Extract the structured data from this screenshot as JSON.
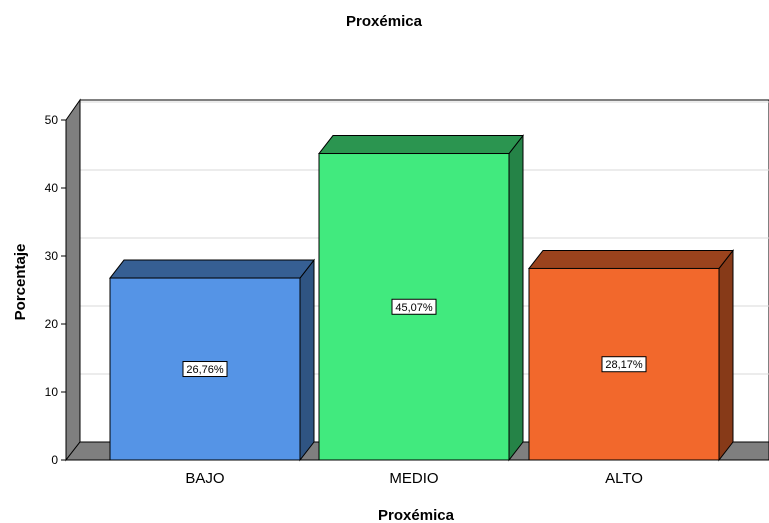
{
  "chart_data": {
    "type": "bar",
    "title": "Proxémica",
    "xlabel": "Proxémica",
    "ylabel": "Porcentaje",
    "categories": [
      "BAJO",
      "MEDIO",
      "ALTO"
    ],
    "values": [
      26.76,
      45.07,
      28.17
    ],
    "data_labels": [
      "26,76%",
      "45,07%",
      "28,17%"
    ],
    "ylim": [
      0,
      50
    ],
    "yticks": [
      0,
      10,
      20,
      30,
      40,
      50
    ],
    "grid": true,
    "style": "3d",
    "colors": {
      "front": [
        "#5594e6",
        "#41ea7e",
        "#f2682c"
      ],
      "top": [
        "#365f93",
        "#2b9550",
        "#9b431d"
      ],
      "side": [
        "#2f5482",
        "#258347",
        "#873a18"
      ],
      "wall": "#7f7f7f",
      "grid": "#d9d9d9"
    }
  }
}
